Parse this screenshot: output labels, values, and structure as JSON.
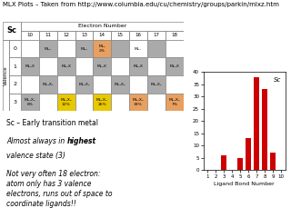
{
  "chart_data": [
    {
      "type": "table",
      "title": "MLX Plots – Taken from http://www.columbia.edu/cu/chemistry/groups/parkin/mlxz.htm",
      "annotations": [
        "Sc",
        "Electron Number",
        "Valence"
      ],
      "columns": [
        10,
        11,
        12,
        13,
        14,
        15,
        16,
        17,
        18
      ],
      "rows": [
        0,
        1,
        2,
        3
      ],
      "cells": [
        [
          "",
          "ML₄",
          "",
          "ML₆",
          "ML₅\n2%",
          "",
          "ML₇",
          "",
          ""
        ],
        [
          "ML₄X",
          "",
          "ML₅X",
          "",
          "ML₅X",
          "",
          "ML₅X",
          "",
          "ML₄X"
        ],
        [
          "",
          "ML₄X₂",
          "",
          "ML₄X₂",
          "",
          "ML₄X₂",
          "",
          "ML₄X₂",
          ""
        ],
        [
          "ML₄X₃\n6%",
          "",
          "ML₅X₃\n12%",
          "",
          "ML₅X₃\n26%",
          "",
          "ML₅X₃\n33%",
          "",
          "ML₄X₃\n7%"
        ]
      ],
      "colors": [
        [
          "#ffffff",
          "#aaaaaa",
          "#ffffff",
          "#aaaaaa",
          "#e8a060",
          "#aaaaaa",
          "#ffffff",
          "#aaaaaa",
          "#ffffff"
        ],
        [
          "#aaaaaa",
          "#ffffff",
          "#aaaaaa",
          "#ffffff",
          "#aaaaaa",
          "#ffffff",
          "#aaaaaa",
          "#ffffff",
          "#aaaaaa"
        ],
        [
          "#ffffff",
          "#aaaaaa",
          "#ffffff",
          "#aaaaaa",
          "#ffffff",
          "#aaaaaa",
          "#ffffff",
          "#aaaaaa",
          "#ffffff"
        ],
        [
          "#aaaaaa",
          "#ffffff",
          "#e8c800",
          "#ffffff",
          "#e8c800",
          "#ffffff",
          "#e8a060",
          "#ffffff",
          "#e8a060"
        ]
      ]
    },
    {
      "type": "text",
      "annotations": [
        "Sc – Early transition metal",
        "Almost always in ",
        "highest",
        "valence state (3)",
        "Not very often 18 electron:\natom only has 3 valence\nelectrons, runs out of space to\ncoordinate ligands!!"
      ]
    },
    {
      "type": "bar",
      "categories": [
        "1",
        "2",
        "3",
        "4",
        "5",
        "6",
        "7",
        "8",
        "9",
        "10"
      ],
      "values": [
        0,
        0,
        6,
        0,
        5,
        13,
        38,
        33,
        7,
        0
      ],
      "color": "#cc0000",
      "xlabel": "Ligand Bond Number",
      "ylim": [
        0,
        40
      ],
      "yticks": [
        0,
        5,
        10,
        15,
        20,
        25,
        30,
        35,
        40
      ],
      "annotations": [
        "Sc"
      ]
    }
  ]
}
